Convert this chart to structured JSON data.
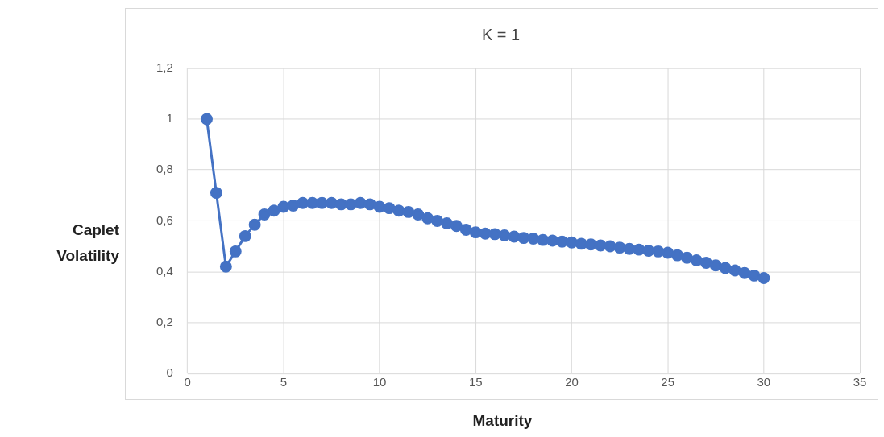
{
  "chart_data": {
    "type": "line",
    "title": "K = 1",
    "xlabel": "Maturity",
    "ylabel": "Caplet Volatility",
    "x": [
      1,
      1.5,
      2,
      2.5,
      3,
      3.5,
      4,
      4.5,
      5,
      5.5,
      6,
      6.5,
      7,
      7.5,
      8,
      8.5,
      9,
      9.5,
      10,
      10.5,
      11,
      11.5,
      12,
      12.5,
      13,
      13.5,
      14,
      14.5,
      15,
      15.5,
      16,
      16.5,
      17,
      17.5,
      18,
      18.5,
      19,
      19.5,
      20,
      20.5,
      21,
      21.5,
      22,
      22.5,
      23,
      23.5,
      24,
      24.5,
      25,
      25.5,
      26,
      26.5,
      27,
      27.5,
      28,
      28.5,
      29,
      29.5,
      30
    ],
    "series": [
      {
        "color": "#4472c4",
        "values": [
          1.0,
          0.71,
          0.42,
          0.48,
          0.54,
          0.585,
          0.625,
          0.64,
          0.655,
          0.66,
          0.67,
          0.67,
          0.67,
          0.67,
          0.665,
          0.665,
          0.67,
          0.665,
          0.655,
          0.65,
          0.64,
          0.635,
          0.625,
          0.61,
          0.6,
          0.59,
          0.58,
          0.565,
          0.555,
          0.55,
          0.548,
          0.543,
          0.538,
          0.533,
          0.53,
          0.525,
          0.522,
          0.518,
          0.515,
          0.51,
          0.507,
          0.503,
          0.5,
          0.495,
          0.49,
          0.487,
          0.483,
          0.48,
          0.475,
          0.465,
          0.455,
          0.445,
          0.435,
          0.425,
          0.415,
          0.405,
          0.395,
          0.385,
          0.375
        ]
      }
    ],
    "xlim": [
      0,
      35
    ],
    "xticks": [
      0,
      5,
      10,
      15,
      20,
      25,
      30,
      35
    ],
    "ylim": [
      0,
      1.2
    ],
    "yticks": [
      0,
      {
        "value": 0.2,
        "label": "0,2"
      },
      {
        "value": 0.4,
        "label": "0,4"
      },
      {
        "value": 0.6,
        "label": "0,6"
      },
      {
        "value": 0.8,
        "label": "0,8"
      },
      1,
      {
        "value": 1.2,
        "label": "1,2"
      }
    ],
    "grid": true,
    "legend": false,
    "marker": "circle",
    "line_style": "solid"
  }
}
